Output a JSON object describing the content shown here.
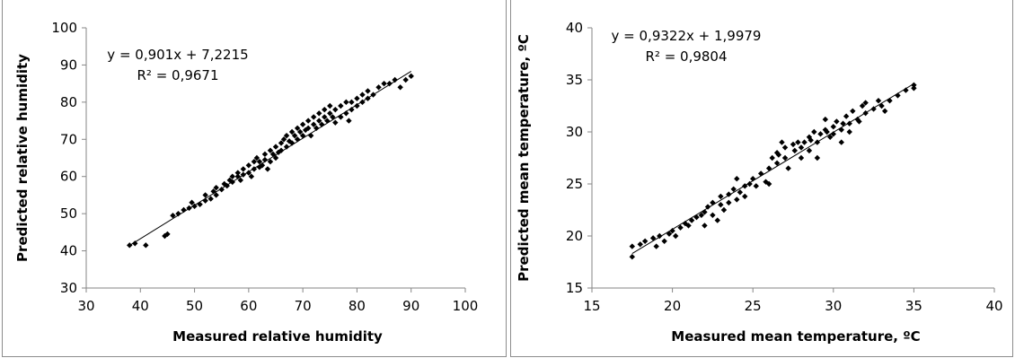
{
  "chart_data": [
    {
      "type": "scatter",
      "title": "",
      "xlabel": "Measured relative humidity",
      "ylabel": "Predicted relative humidity",
      "xlim": [
        30,
        100
      ],
      "ylim": [
        30,
        100
      ],
      "xticks": [
        30,
        40,
        50,
        60,
        70,
        80,
        90,
        100
      ],
      "yticks": [
        30,
        40,
        50,
        60,
        70,
        80,
        90,
        100
      ],
      "grid": false,
      "equation": "y = 0,901x + 7,2215",
      "r_squared": "R² = 0,9671",
      "trendline": {
        "slope": 0.901,
        "intercept": 7.2215,
        "x_range": [
          38,
          90
        ]
      },
      "marker_color": "#000000",
      "points": [
        [
          38,
          41.5
        ],
        [
          39,
          42
        ],
        [
          41,
          41.5
        ],
        [
          44.5,
          44
        ],
        [
          45,
          44.5
        ],
        [
          46,
          49.5
        ],
        [
          47,
          50
        ],
        [
          48,
          51
        ],
        [
          49,
          51.5
        ],
        [
          49.5,
          53
        ],
        [
          50,
          52
        ],
        [
          51,
          52.5
        ],
        [
          52,
          53.5
        ],
        [
          52,
          55
        ],
        [
          53,
          54
        ],
        [
          53.5,
          56
        ],
        [
          54,
          55
        ],
        [
          54,
          57
        ],
        [
          55,
          56.5
        ],
        [
          55.5,
          58
        ],
        [
          56,
          57.5
        ],
        [
          56.5,
          59
        ],
        [
          57,
          58.5
        ],
        [
          57,
          60
        ],
        [
          58,
          60
        ],
        [
          58,
          61
        ],
        [
          58.5,
          59
        ],
        [
          59,
          60.5
        ],
        [
          59,
          62
        ],
        [
          60,
          61
        ],
        [
          60,
          63
        ],
        [
          60.5,
          60
        ],
        [
          61,
          62
        ],
        [
          61,
          64
        ],
        [
          61.5,
          65
        ],
        [
          62,
          62.5
        ],
        [
          62,
          64
        ],
        [
          62.5,
          63
        ],
        [
          63,
          64.5
        ],
        [
          63,
          66
        ],
        [
          63.5,
          62
        ],
        [
          64,
          64
        ],
        [
          64,
          67
        ],
        [
          64.5,
          66
        ],
        [
          65,
          65
        ],
        [
          65,
          68
        ],
        [
          65.5,
          66.5
        ],
        [
          66,
          67
        ],
        [
          66,
          69
        ],
        [
          66.5,
          70
        ],
        [
          67,
          68
        ],
        [
          67,
          71
        ],
        [
          67.5,
          69.5
        ],
        [
          68,
          69
        ],
        [
          68,
          72
        ],
        [
          68.5,
          71
        ],
        [
          69,
          70
        ],
        [
          69,
          73
        ],
        [
          69.5,
          72
        ],
        [
          70,
          71
        ],
        [
          70,
          74
        ],
        [
          70.5,
          72.5
        ],
        [
          71,
          73
        ],
        [
          71,
          75
        ],
        [
          71.5,
          71
        ],
        [
          72,
          74
        ],
        [
          72,
          76
        ],
        [
          72.5,
          73
        ],
        [
          73,
          75
        ],
        [
          73,
          77
        ],
        [
          73.5,
          74
        ],
        [
          74,
          76
        ],
        [
          74,
          78
        ],
        [
          74.5,
          75
        ],
        [
          75,
          77
        ],
        [
          75,
          79
        ],
        [
          75.5,
          76
        ],
        [
          76,
          78
        ],
        [
          76,
          74.5
        ],
        [
          77,
          76
        ],
        [
          77,
          79
        ],
        [
          78,
          77
        ],
        [
          78,
          80
        ],
        [
          78.5,
          75
        ],
        [
          79,
          78
        ],
        [
          79,
          80
        ],
        [
          80,
          79
        ],
        [
          80,
          81
        ],
        [
          81,
          80
        ],
        [
          81,
          82
        ],
        [
          82,
          81
        ],
        [
          82,
          83
        ],
        [
          83,
          82
        ],
        [
          84,
          84
        ],
        [
          85,
          85
        ],
        [
          86,
          85
        ],
        [
          87,
          86
        ],
        [
          88,
          84
        ],
        [
          89,
          86
        ],
        [
          90,
          87
        ]
      ]
    },
    {
      "type": "scatter",
      "title": "",
      "xlabel": "Measured mean temperature, ºC",
      "ylabel": "Predicted mean temperature, ºC",
      "xlim": [
        15,
        40
      ],
      "ylim": [
        15,
        40
      ],
      "xticks": [
        15,
        20,
        25,
        30,
        35,
        40
      ],
      "yticks": [
        15,
        20,
        25,
        30,
        35,
        40
      ],
      "grid": false,
      "equation": "y = 0,9322x + 1,9979",
      "r_squared": "R² = 0,9804",
      "trendline": {
        "slope": 0.9322,
        "intercept": 1.9979,
        "x_range": [
          17.5,
          35
        ]
      },
      "marker_color": "#000000",
      "points": [
        [
          17.5,
          18
        ],
        [
          17.5,
          19
        ],
        [
          18,
          19.2
        ],
        [
          18.3,
          19.5
        ],
        [
          18.8,
          19.8
        ],
        [
          19,
          19
        ],
        [
          19.2,
          20
        ],
        [
          19.5,
          19.5
        ],
        [
          19.8,
          20.2
        ],
        [
          20,
          20.5
        ],
        [
          20.2,
          20
        ],
        [
          20.5,
          20.8
        ],
        [
          20.8,
          21.2
        ],
        [
          21,
          21
        ],
        [
          21.2,
          21.5
        ],
        [
          21.5,
          21.8
        ],
        [
          21.8,
          22
        ],
        [
          22,
          22.3
        ],
        [
          22,
          21
        ],
        [
          22.2,
          22.8
        ],
        [
          22.5,
          22
        ],
        [
          22.5,
          23.2
        ],
        [
          22.8,
          21.5
        ],
        [
          23,
          23
        ],
        [
          23,
          23.8
        ],
        [
          23.2,
          22.5
        ],
        [
          23.5,
          24
        ],
        [
          23.5,
          23.2
        ],
        [
          23.8,
          24.5
        ],
        [
          24,
          23.5
        ],
        [
          24,
          25.5
        ],
        [
          24.2,
          24.2
        ],
        [
          24.5,
          24.8
        ],
        [
          24.5,
          23.8
        ],
        [
          24.8,
          25
        ],
        [
          25,
          25.5
        ],
        [
          25.2,
          24.8
        ],
        [
          25.5,
          26
        ],
        [
          25.8,
          25.2
        ],
        [
          26,
          26.5
        ],
        [
          26,
          25
        ],
        [
          26.2,
          27.5
        ],
        [
          26.5,
          28
        ],
        [
          26.5,
          27
        ],
        [
          26.8,
          29
        ],
        [
          27,
          27.5
        ],
        [
          27,
          28.5
        ],
        [
          27.2,
          26.5
        ],
        [
          27.5,
          28.8
        ],
        [
          27.8,
          29
        ],
        [
          28,
          28.5
        ],
        [
          28,
          27.5
        ],
        [
          28.2,
          29
        ],
        [
          28.5,
          29.5
        ],
        [
          28.5,
          28.2
        ],
        [
          28.8,
          30
        ],
        [
          29,
          29
        ],
        [
          29,
          27.5
        ],
        [
          29.2,
          29.8
        ],
        [
          29.5,
          31.2
        ],
        [
          29.5,
          30.2
        ],
        [
          29.8,
          29.5
        ],
        [
          30,
          30.5
        ],
        [
          30,
          29.8
        ],
        [
          30.2,
          31
        ],
        [
          30.5,
          30.2
        ],
        [
          30.5,
          29
        ],
        [
          30.8,
          31.5
        ],
        [
          31,
          30.8
        ],
        [
          31,
          30
        ],
        [
          31.2,
          32
        ],
        [
          31.5,
          31.2
        ],
        [
          31.8,
          32.5
        ],
        [
          32,
          31.8
        ],
        [
          32,
          32.8
        ],
        [
          32.5,
          32.2
        ],
        [
          32.8,
          33
        ],
        [
          33,
          32.5
        ],
        [
          33.5,
          33
        ],
        [
          34,
          33.5
        ],
        [
          34.5,
          34
        ],
        [
          35,
          34.2
        ],
        [
          35,
          34.5
        ],
        [
          33.2,
          32
        ],
        [
          31.6,
          31
        ],
        [
          30.6,
          30.8
        ],
        [
          29.6,
          30
        ],
        [
          28.6,
          29.2
        ],
        [
          27.6,
          28.2
        ],
        [
          26.6,
          27.8
        ]
      ]
    }
  ]
}
